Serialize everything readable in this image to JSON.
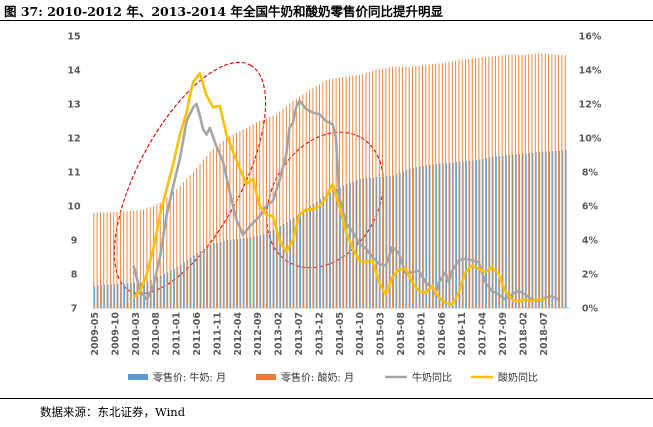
{
  "title": "图 37: 2010-2012 年、2013-2014 年全国牛奶和酸奶零售价同比提升明显",
  "source": "数据来源：东北证券，Wind",
  "chart_data": {
    "type": "bar+line",
    "title": "2010-2012 年、2013-2014 年全国牛奶和酸奶零售价同比提升明显",
    "x_tick_labels": [
      "2009-05",
      "2009-10",
      "2010-03",
      "2010-08",
      "2011-01",
      "2011-06",
      "2011-11",
      "2012-04",
      "2012-09",
      "2013-02",
      "2013-07",
      "2013-12",
      "2014-05",
      "2014-10",
      "2015-03",
      "2015-08",
      "2016-01",
      "2016-06",
      "2016-11",
      "2017-04",
      "2017-09",
      "2018-02",
      "2018-07"
    ],
    "y_left": {
      "min": 7,
      "max": 15,
      "ticks": [
        "7",
        "8",
        "9",
        "10",
        "11",
        "12",
        "13",
        "14",
        "15"
      ]
    },
    "y_right": {
      "min": 0,
      "max": 16,
      "ticks": [
        "0%",
        "2%",
        "4%",
        "6%",
        "8%",
        "10%",
        "12%",
        "14%",
        "16%"
      ]
    },
    "legend": [
      "零售价: 牛奶: 月",
      "零售价: 酸奶: 月",
      "牛奶同比",
      "酸奶同比"
    ],
    "colors": {
      "milk_price": "#5b9bd5",
      "yogurt_price": "#ed7d31",
      "milk_yoy": "#a5a5a5",
      "yogurt_yoy": "#ffc000",
      "ellipse": "#e00000"
    },
    "series": [
      {
        "name": "零售价: 牛奶: 月",
        "axis": "left",
        "type": "bar",
        "start": "2009-05",
        "anchors": [
          [
            0,
            7.65
          ],
          [
            5,
            7.7
          ],
          [
            10,
            7.72
          ],
          [
            15,
            7.75
          ],
          [
            20,
            7.95
          ],
          [
            25,
            8.2
          ],
          [
            30,
            8.55
          ],
          [
            35,
            8.85
          ],
          [
            40,
            9.0
          ],
          [
            45,
            9.05
          ],
          [
            50,
            9.15
          ],
          [
            55,
            9.35
          ],
          [
            60,
            9.65
          ],
          [
            65,
            10.0
          ],
          [
            70,
            10.35
          ],
          [
            75,
            10.6
          ],
          [
            80,
            10.8
          ],
          [
            85,
            10.85
          ],
          [
            90,
            10.9
          ],
          [
            95,
            11.1
          ],
          [
            100,
            11.2
          ],
          [
            105,
            11.25
          ],
          [
            110,
            11.3
          ],
          [
            115,
            11.35
          ],
          [
            120,
            11.45
          ],
          [
            125,
            11.5
          ],
          [
            130,
            11.55
          ],
          [
            135,
            11.6
          ],
          [
            140,
            11.62
          ],
          [
            142,
            11.65
          ]
        ]
      },
      {
        "name": "零售价: 酸奶: 月",
        "axis": "left",
        "type": "bar",
        "start": "2009-05",
        "anchors": [
          [
            0,
            9.8
          ],
          [
            5,
            9.82
          ],
          [
            10,
            9.85
          ],
          [
            15,
            9.9
          ],
          [
            18,
            10.0
          ],
          [
            20,
            10.1
          ],
          [
            25,
            10.5
          ],
          [
            30,
            11.0
          ],
          [
            35,
            11.6
          ],
          [
            40,
            12.0
          ],
          [
            45,
            12.25
          ],
          [
            50,
            12.5
          ],
          [
            55,
            12.7
          ],
          [
            60,
            13.1
          ],
          [
            65,
            13.4
          ],
          [
            70,
            13.7
          ],
          [
            75,
            13.8
          ],
          [
            80,
            13.85
          ],
          [
            85,
            14.0
          ],
          [
            90,
            14.1
          ],
          [
            95,
            14.1
          ],
          [
            100,
            14.15
          ],
          [
            105,
            14.2
          ],
          [
            110,
            14.3
          ],
          [
            115,
            14.35
          ],
          [
            120,
            14.4
          ],
          [
            125,
            14.45
          ],
          [
            130,
            14.45
          ],
          [
            135,
            14.5
          ],
          [
            140,
            14.45
          ],
          [
            142,
            14.45
          ]
        ]
      },
      {
        "name": "牛奶同比",
        "axis": "right",
        "type": "line",
        "start": "2010-05",
        "anchors": [
          [
            12,
            2.5
          ],
          [
            14,
            1.0
          ],
          [
            16,
            0.5
          ],
          [
            18,
            1.3
          ],
          [
            20,
            3.0
          ],
          [
            22,
            5.5
          ],
          [
            24,
            7.2
          ],
          [
            26,
            8.8
          ],
          [
            28,
            11.0
          ],
          [
            30,
            11.8
          ],
          [
            31,
            12.0
          ],
          [
            32,
            11.3
          ],
          [
            33,
            10.5
          ],
          [
            34,
            10.2
          ],
          [
            35,
            10.6
          ],
          [
            37,
            9.5
          ],
          [
            39,
            8.6
          ],
          [
            41,
            6.8
          ],
          [
            43,
            5.2
          ],
          [
            45,
            4.3
          ],
          [
            47,
            4.8
          ],
          [
            50,
            5.4
          ],
          [
            52,
            6.0
          ],
          [
            54,
            6.3
          ],
          [
            56,
            7.5
          ],
          [
            58,
            9.0
          ],
          [
            59,
            10.6
          ],
          [
            60,
            10.9
          ],
          [
            61,
            11.8
          ],
          [
            62,
            12.2
          ],
          [
            64,
            11.7
          ],
          [
            66,
            11.5
          ],
          [
            68,
            11.4
          ],
          [
            70,
            11.0
          ],
          [
            72,
            10.8
          ],
          [
            73,
            10.0
          ],
          [
            74,
            6.5
          ],
          [
            76,
            5.0
          ],
          [
            78,
            4.5
          ],
          [
            80,
            3.8
          ],
          [
            82,
            3.5
          ],
          [
            84,
            3.0
          ],
          [
            86,
            2.6
          ],
          [
            88,
            2.5
          ],
          [
            90,
            3.6
          ],
          [
            91,
            3.4
          ],
          [
            92,
            3.2
          ],
          [
            94,
            2.0
          ],
          [
            96,
            2.1
          ],
          [
            98,
            2.2
          ],
          [
            100,
            1.5
          ],
          [
            102,
            1.2
          ],
          [
            103,
            0.8
          ],
          [
            104,
            1.5
          ],
          [
            106,
            2.1
          ],
          [
            107,
            1.5
          ],
          [
            108,
            2.2
          ],
          [
            110,
            2.8
          ],
          [
            112,
            2.9
          ],
          [
            114,
            2.8
          ],
          [
            116,
            2.7
          ],
          [
            118,
            1.5
          ],
          [
            120,
            1.0
          ],
          [
            122,
            0.8
          ],
          [
            124,
            0.5
          ],
          [
            126,
            0.8
          ],
          [
            128,
            1.0
          ],
          [
            130,
            0.8
          ],
          [
            132,
            0.5
          ],
          [
            134,
            0.4
          ],
          [
            136,
            0.6
          ],
          [
            138,
            0.7
          ],
          [
            140,
            0.5
          ]
        ]
      },
      {
        "name": "酸奶同比",
        "axis": "right",
        "type": "line",
        "start": "2010-05",
        "anchors": [
          [
            12,
            0.6
          ],
          [
            14,
            1.0
          ],
          [
            16,
            2.0
          ],
          [
            18,
            3.5
          ],
          [
            20,
            5.5
          ],
          [
            22,
            7.0
          ],
          [
            24,
            8.5
          ],
          [
            26,
            10.2
          ],
          [
            28,
            11.5
          ],
          [
            29,
            12.5
          ],
          [
            30,
            13.3
          ],
          [
            32,
            13.8
          ],
          [
            34,
            12.5
          ],
          [
            36,
            11.8
          ],
          [
            38,
            11.9
          ],
          [
            40,
            10.2
          ],
          [
            42,
            9.2
          ],
          [
            44,
            8.2
          ],
          [
            46,
            7.3
          ],
          [
            48,
            7.6
          ],
          [
            50,
            6.0
          ],
          [
            52,
            5.5
          ],
          [
            54,
            5.4
          ],
          [
            56,
            4.0
          ],
          [
            58,
            3.3
          ],
          [
            60,
            4.0
          ],
          [
            62,
            5.5
          ],
          [
            64,
            5.8
          ],
          [
            66,
            5.8
          ],
          [
            68,
            6.0
          ],
          [
            70,
            6.5
          ],
          [
            72,
            7.3
          ],
          [
            74,
            6.0
          ],
          [
            76,
            4.5
          ],
          [
            78,
            3.5
          ],
          [
            80,
            2.8
          ],
          [
            82,
            2.7
          ],
          [
            84,
            2.8
          ],
          [
            86,
            1.5
          ],
          [
            88,
            0.8
          ],
          [
            90,
            1.8
          ],
          [
            92,
            2.3
          ],
          [
            94,
            2.3
          ],
          [
            96,
            1.5
          ],
          [
            98,
            1.0
          ],
          [
            100,
            0.9
          ],
          [
            102,
            1.3
          ],
          [
            104,
            0.6
          ],
          [
            106,
            0.3
          ],
          [
            108,
            0.2
          ],
          [
            110,
            0.9
          ],
          [
            112,
            2.1
          ],
          [
            114,
            2.5
          ],
          [
            116,
            2.3
          ],
          [
            118,
            2.1
          ],
          [
            120,
            2.4
          ],
          [
            122,
            2.0
          ],
          [
            124,
            1.0
          ],
          [
            126,
            0.5
          ],
          [
            128,
            0.4
          ],
          [
            130,
            0.5
          ],
          [
            132,
            0.4
          ],
          [
            134,
            0.5
          ],
          [
            136,
            0.5
          ]
        ]
      }
    ],
    "annotations": [
      {
        "type": "ellipse",
        "label": "2010-2012 highlight",
        "from": "2010-03",
        "to": "2012-06"
      },
      {
        "type": "ellipse",
        "label": "2013-2014 highlight",
        "from": "2012-12",
        "to": "2015-02"
      }
    ]
  }
}
